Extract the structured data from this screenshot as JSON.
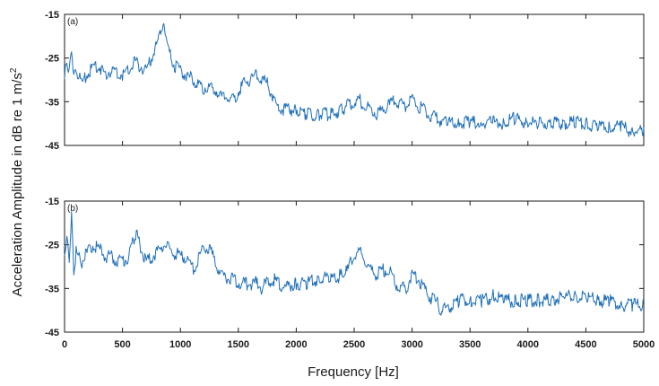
{
  "figure": {
    "ylabel_main": "Acceleration Amplitude in dB re 1 m/s",
    "ylabel_superscript": "2",
    "xlabel": "Frequency [Hz]"
  },
  "colors": {
    "line": "#1f6fb8",
    "axes": "#1a1a1a",
    "background": "#ffffff"
  },
  "chart_data": [
    {
      "type": "line",
      "panel_label": "(a)",
      "xlabel": "",
      "ylabel": "",
      "xlim": [
        0,
        5000
      ],
      "ylim": [
        -45,
        -15
      ],
      "yticks": [
        -15,
        -25,
        -35,
        -45
      ],
      "xticks": [],
      "grid": false,
      "series": [
        {
          "x": [
            0,
            20,
            40,
            60,
            80,
            100,
            150,
            200,
            250,
            300,
            350,
            400,
            450,
            500,
            550,
            600,
            650,
            700,
            750,
            800,
            830,
            850,
            870,
            900,
            950,
            1000,
            1050,
            1100,
            1150,
            1200,
            1250,
            1300,
            1350,
            1400,
            1450,
            1500,
            1550,
            1600,
            1650,
            1700,
            1750,
            1800,
            1850,
            1900,
            2000,
            2100,
            2200,
            2300,
            2400,
            2450,
            2500,
            2550,
            2600,
            2650,
            2700,
            2750,
            2800,
            2850,
            2900,
            2950,
            3000,
            3050,
            3100,
            3150,
            3200,
            3300,
            3400,
            3500,
            3600,
            3700,
            3800,
            3900,
            4000,
            4100,
            4200,
            4300,
            4400,
            4500,
            4600,
            4700,
            4800,
            4900,
            5000
          ],
          "y": [
            -29,
            -24,
            -28,
            -22,
            -29,
            -27,
            -30,
            -28,
            -26,
            -26,
            -28,
            -27,
            -28,
            -28,
            -27,
            -25,
            -26,
            -27,
            -24,
            -21,
            -18,
            -17,
            -18,
            -23,
            -26,
            -27,
            -28,
            -29,
            -30,
            -31,
            -31,
            -31,
            -33,
            -33,
            -34,
            -32,
            -30,
            -29,
            -28,
            -29,
            -30,
            -33,
            -36,
            -36,
            -36,
            -37,
            -37,
            -37,
            -36,
            -35,
            -34,
            -34,
            -35,
            -36,
            -37,
            -36,
            -35,
            -34,
            -35,
            -35,
            -34,
            -35,
            -36,
            -37,
            -38,
            -39,
            -39,
            -39,
            -39,
            -39,
            -39,
            -38,
            -39,
            -39,
            -39,
            -39,
            -39,
            -39,
            -40,
            -40,
            -40,
            -41,
            -41
          ]
        }
      ]
    },
    {
      "type": "line",
      "panel_label": "(b)",
      "xlabel": "Frequency [Hz]",
      "ylabel": "",
      "xlim": [
        0,
        5000
      ],
      "ylim": [
        -45,
        -15
      ],
      "yticks": [
        -15,
        -25,
        -35,
        -45
      ],
      "xticks": [
        0,
        500,
        1000,
        1500,
        2000,
        2500,
        3000,
        3500,
        4000,
        4500,
        5000
      ],
      "grid": false,
      "series": [
        {
          "x": [
            0,
            20,
            40,
            60,
            80,
            100,
            150,
            200,
            250,
            300,
            350,
            400,
            450,
            500,
            550,
            600,
            620,
            650,
            700,
            750,
            800,
            850,
            900,
            950,
            1000,
            1050,
            1100,
            1150,
            1200,
            1250,
            1300,
            1350,
            1400,
            1450,
            1500,
            1550,
            1600,
            1650,
            1700,
            1750,
            1800,
            1850,
            1900,
            2000,
            2100,
            2200,
            2300,
            2400,
            2450,
            2500,
            2550,
            2600,
            2650,
            2700,
            2750,
            2800,
            2850,
            2900,
            2950,
            3000,
            3050,
            3100,
            3150,
            3200,
            3250,
            3300,
            3400,
            3500,
            3600,
            3700,
            3800,
            3900,
            4000,
            4100,
            4200,
            4300,
            4400,
            4500,
            4600,
            4700,
            4800,
            4900,
            5000
          ],
          "y": [
            -27,
            -22,
            -28,
            -18,
            -30,
            -26,
            -28,
            -26,
            -24,
            -25,
            -27,
            -27,
            -28,
            -28,
            -27,
            -23,
            -22,
            -24,
            -28,
            -27,
            -26,
            -24,
            -25,
            -26,
            -27,
            -27,
            -30,
            -28,
            -25,
            -25,
            -28,
            -31,
            -32,
            -32,
            -33,
            -33,
            -33,
            -33,
            -34,
            -33,
            -32,
            -33,
            -34,
            -33,
            -33,
            -32,
            -32,
            -31,
            -30,
            -26,
            -26,
            -28,
            -30,
            -31,
            -30,
            -30,
            -33,
            -34,
            -34,
            -31,
            -32,
            -34,
            -36,
            -37,
            -39,
            -39,
            -37,
            -37,
            -37,
            -36,
            -37,
            -37,
            -37,
            -37,
            -37,
            -36,
            -36,
            -36,
            -37,
            -37,
            -38,
            -38,
            -38
          ]
        }
      ]
    }
  ]
}
